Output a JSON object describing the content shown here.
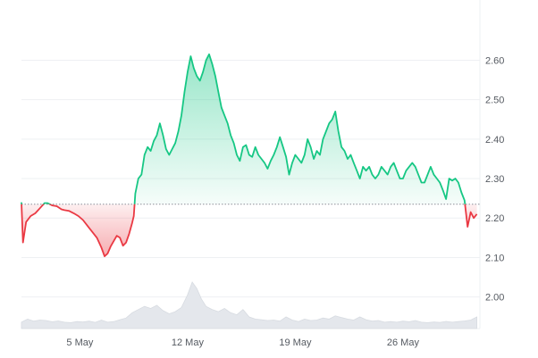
{
  "chart_data": {
    "type": "area",
    "title": "",
    "xlabel": "",
    "ylabel": "",
    "baseline": 2.235,
    "ylim": [
      1.92,
      2.73
    ],
    "y_ticks": [
      "2.00",
      "2.10",
      "2.20",
      "2.30",
      "2.40",
      "2.50",
      "2.60"
    ],
    "x_ticks": [
      {
        "label": "5 May",
        "x": 5
      },
      {
        "label": "12 May",
        "x": 12
      },
      {
        "label": "19 May",
        "x": 19
      },
      {
        "label": "26 May",
        "x": 26
      }
    ],
    "xlim": [
      1.2,
      31.0
    ],
    "colors": {
      "up": "#16c784",
      "down": "#ea3943",
      "up_fill": "#16c784",
      "down_fill": "#ea3943",
      "baseline": "#8a8f98",
      "grid": "#eef0f3",
      "volume": "#e4e7ec"
    },
    "series": [
      {
        "values": [
          [
            1.2,
            2.24
          ],
          [
            1.3,
            2.138
          ],
          [
            1.5,
            2.19
          ],
          [
            1.8,
            2.205
          ],
          [
            2.1,
            2.212
          ],
          [
            2.4,
            2.225
          ],
          [
            2.7,
            2.238
          ],
          [
            2.9,
            2.238
          ],
          [
            3.2,
            2.232
          ],
          [
            3.5,
            2.23
          ],
          [
            3.8,
            2.222
          ],
          [
            4.0,
            2.22
          ],
          [
            4.3,
            2.218
          ],
          [
            4.6,
            2.212
          ],
          [
            4.9,
            2.205
          ],
          [
            5.2,
            2.195
          ],
          [
            5.5,
            2.18
          ],
          [
            5.8,
            2.165
          ],
          [
            6.1,
            2.15
          ],
          [
            6.4,
            2.125
          ],
          [
            6.6,
            2.103
          ],
          [
            6.8,
            2.11
          ],
          [
            7.0,
            2.128
          ],
          [
            7.2,
            2.142
          ],
          [
            7.4,
            2.155
          ],
          [
            7.6,
            2.15
          ],
          [
            7.8,
            2.13
          ],
          [
            8.0,
            2.138
          ],
          [
            8.2,
            2.16
          ],
          [
            8.4,
            2.188
          ],
          [
            8.5,
            2.205
          ],
          [
            8.6,
            2.262
          ],
          [
            8.8,
            2.3
          ],
          [
            9.0,
            2.31
          ],
          [
            9.2,
            2.36
          ],
          [
            9.4,
            2.38
          ],
          [
            9.6,
            2.37
          ],
          [
            9.8,
            2.395
          ],
          [
            10.0,
            2.41
          ],
          [
            10.2,
            2.44
          ],
          [
            10.4,
            2.41
          ],
          [
            10.6,
            2.375
          ],
          [
            10.8,
            2.36
          ],
          [
            11.0,
            2.375
          ],
          [
            11.2,
            2.39
          ],
          [
            11.4,
            2.42
          ],
          [
            11.6,
            2.46
          ],
          [
            11.8,
            2.52
          ],
          [
            12.0,
            2.57
          ],
          [
            12.2,
            2.61
          ],
          [
            12.4,
            2.58
          ],
          [
            12.6,
            2.56
          ],
          [
            12.8,
            2.548
          ],
          [
            13.0,
            2.57
          ],
          [
            13.2,
            2.6
          ],
          [
            13.4,
            2.615
          ],
          [
            13.6,
            2.59
          ],
          [
            13.8,
            2.56
          ],
          [
            14.0,
            2.52
          ],
          [
            14.2,
            2.48
          ],
          [
            14.4,
            2.46
          ],
          [
            14.6,
            2.44
          ],
          [
            14.8,
            2.41
          ],
          [
            15.0,
            2.39
          ],
          [
            15.2,
            2.36
          ],
          [
            15.4,
            2.345
          ],
          [
            15.6,
            2.38
          ],
          [
            15.8,
            2.385
          ],
          [
            16.0,
            2.36
          ],
          [
            16.2,
            2.355
          ],
          [
            16.4,
            2.38
          ],
          [
            16.6,
            2.36
          ],
          [
            16.8,
            2.35
          ],
          [
            17.0,
            2.34
          ],
          [
            17.2,
            2.325
          ],
          [
            17.4,
            2.345
          ],
          [
            17.6,
            2.36
          ],
          [
            17.8,
            2.38
          ],
          [
            18.0,
            2.405
          ],
          [
            18.2,
            2.38
          ],
          [
            18.4,
            2.355
          ],
          [
            18.6,
            2.31
          ],
          [
            18.8,
            2.34
          ],
          [
            19.0,
            2.36
          ],
          [
            19.2,
            2.35
          ],
          [
            19.4,
            2.34
          ],
          [
            19.6,
            2.36
          ],
          [
            19.8,
            2.4
          ],
          [
            20.0,
            2.38
          ],
          [
            20.2,
            2.35
          ],
          [
            20.4,
            2.37
          ],
          [
            20.6,
            2.36
          ],
          [
            20.8,
            2.4
          ],
          [
            21.0,
            2.42
          ],
          [
            21.2,
            2.44
          ],
          [
            21.4,
            2.45
          ],
          [
            21.6,
            2.47
          ],
          [
            21.8,
            2.42
          ],
          [
            22.0,
            2.38
          ],
          [
            22.2,
            2.37
          ],
          [
            22.4,
            2.35
          ],
          [
            22.6,
            2.36
          ],
          [
            22.8,
            2.34
          ],
          [
            23.0,
            2.32
          ],
          [
            23.2,
            2.3
          ],
          [
            23.4,
            2.33
          ],
          [
            23.6,
            2.32
          ],
          [
            23.8,
            2.33
          ],
          [
            24.0,
            2.31
          ],
          [
            24.2,
            2.3
          ],
          [
            24.4,
            2.31
          ],
          [
            24.6,
            2.33
          ],
          [
            24.8,
            2.32
          ],
          [
            25.0,
            2.31
          ],
          [
            25.2,
            2.33
          ],
          [
            25.4,
            2.34
          ],
          [
            25.6,
            2.32
          ],
          [
            25.8,
            2.3
          ],
          [
            26.0,
            2.3
          ],
          [
            26.2,
            2.32
          ],
          [
            26.4,
            2.33
          ],
          [
            26.6,
            2.34
          ],
          [
            26.8,
            2.33
          ],
          [
            27.0,
            2.31
          ],
          [
            27.2,
            2.29
          ],
          [
            27.4,
            2.29
          ],
          [
            27.6,
            2.31
          ],
          [
            27.8,
            2.33
          ],
          [
            28.0,
            2.31
          ],
          [
            28.2,
            2.3
          ],
          [
            28.4,
            2.29
          ],
          [
            28.6,
            2.27
          ],
          [
            28.8,
            2.248
          ],
          [
            29.0,
            2.3
          ],
          [
            29.2,
            2.295
          ],
          [
            29.4,
            2.3
          ],
          [
            29.6,
            2.29
          ],
          [
            29.8,
            2.265
          ],
          [
            30.0,
            2.245
          ],
          [
            30.2,
            2.178
          ],
          [
            30.4,
            2.215
          ],
          [
            30.6,
            2.2
          ],
          [
            30.8,
            2.21
          ]
        ]
      }
    ],
    "volume": [
      [
        1.2,
        0.3
      ],
      [
        1.6,
        0.45
      ],
      [
        2.0,
        0.35
      ],
      [
        2.4,
        0.4
      ],
      [
        2.8,
        0.38
      ],
      [
        3.2,
        0.32
      ],
      [
        3.6,
        0.36
      ],
      [
        4.0,
        0.3
      ],
      [
        4.4,
        0.28
      ],
      [
        4.8,
        0.33
      ],
      [
        5.2,
        0.31
      ],
      [
        5.6,
        0.35
      ],
      [
        6.0,
        0.29
      ],
      [
        6.4,
        0.4
      ],
      [
        6.8,
        0.3
      ],
      [
        7.2,
        0.33
      ],
      [
        7.6,
        0.42
      ],
      [
        8.0,
        0.5
      ],
      [
        8.4,
        0.75
      ],
      [
        8.8,
        0.9
      ],
      [
        9.2,
        1.05
      ],
      [
        9.6,
        0.95
      ],
      [
        10.0,
        1.1
      ],
      [
        10.4,
        0.85
      ],
      [
        10.8,
        0.7
      ],
      [
        11.2,
        0.8
      ],
      [
        11.6,
        1.0
      ],
      [
        12.0,
        1.6
      ],
      [
        12.3,
        2.2
      ],
      [
        12.6,
        1.9
      ],
      [
        12.9,
        1.4
      ],
      [
        13.2,
        1.05
      ],
      [
        13.6,
        0.9
      ],
      [
        14.0,
        0.8
      ],
      [
        14.4,
        0.95
      ],
      [
        14.8,
        0.75
      ],
      [
        15.2,
        0.65
      ],
      [
        15.6,
        0.9
      ],
      [
        16.0,
        0.55
      ],
      [
        16.4,
        0.45
      ],
      [
        16.8,
        0.42
      ],
      [
        17.2,
        0.38
      ],
      [
        17.6,
        0.4
      ],
      [
        18.0,
        0.35
      ],
      [
        18.4,
        0.55
      ],
      [
        18.8,
        0.4
      ],
      [
        19.2,
        0.33
      ],
      [
        19.6,
        0.45
      ],
      [
        20.0,
        0.38
      ],
      [
        20.4,
        0.4
      ],
      [
        20.8,
        0.5
      ],
      [
        21.2,
        0.45
      ],
      [
        21.6,
        0.6
      ],
      [
        22.0,
        0.52
      ],
      [
        22.4,
        0.45
      ],
      [
        22.8,
        0.4
      ],
      [
        23.2,
        0.55
      ],
      [
        23.6,
        0.42
      ],
      [
        24.0,
        0.35
      ],
      [
        24.4,
        0.38
      ],
      [
        24.8,
        0.3
      ],
      [
        25.2,
        0.33
      ],
      [
        25.6,
        0.3
      ],
      [
        26.0,
        0.35
      ],
      [
        26.4,
        0.32
      ],
      [
        26.8,
        0.38
      ],
      [
        27.2,
        0.3
      ],
      [
        27.6,
        0.28
      ],
      [
        28.0,
        0.31
      ],
      [
        28.4,
        0.29
      ],
      [
        28.8,
        0.34
      ],
      [
        29.2,
        0.3
      ],
      [
        29.6,
        0.33
      ],
      [
        30.0,
        0.36
      ],
      [
        30.4,
        0.4
      ],
      [
        30.8,
        0.55
      ]
    ],
    "grid": true,
    "legend": "none"
  }
}
